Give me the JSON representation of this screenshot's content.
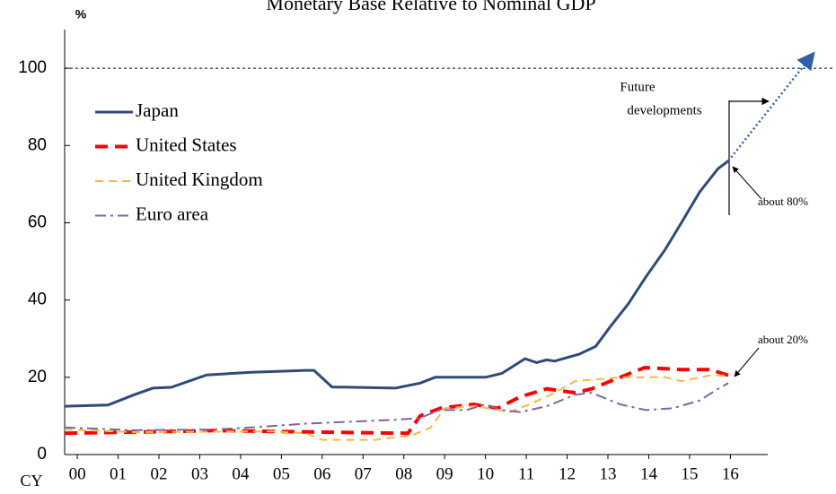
{
  "chart_data": {
    "type": "line",
    "title": "Monetary Base Relative to Nominal GDP",
    "y_label": "%",
    "x_label": "CY",
    "xlim": [
      0.19,
      19
    ],
    "ylim": [
      0,
      110
    ],
    "yticks": [
      0,
      20,
      40,
      60,
      80,
      100
    ],
    "xticks": [
      {
        "value": 0.5,
        "label": "00"
      },
      {
        "value": 1.5,
        "label": "01"
      },
      {
        "value": 2.5,
        "label": "02"
      },
      {
        "value": 3.5,
        "label": "03"
      },
      {
        "value": 4.5,
        "label": "04"
      },
      {
        "value": 5.5,
        "label": "05"
      },
      {
        "value": 6.5,
        "label": "06"
      },
      {
        "value": 7.5,
        "label": "07"
      },
      {
        "value": 8.5,
        "label": "08"
      },
      {
        "value": 9.5,
        "label": "09"
      },
      {
        "value": 10.5,
        "label": "10"
      },
      {
        "value": 11.5,
        "label": "11"
      },
      {
        "value": 12.5,
        "label": "12"
      },
      {
        "value": 13.5,
        "label": "13"
      },
      {
        "value": 14.5,
        "label": "14"
      },
      {
        "value": 15.5,
        "label": "15"
      },
      {
        "value": 16.5,
        "label": "16"
      }
    ],
    "reference_line": 100,
    "series": [
      {
        "name": "Japan",
        "color": "#2f4a7c",
        "dash": "none",
        "width": 3,
        "x": [
          0.19,
          1.25,
          1.9,
          2.35,
          2.8,
          3.67,
          4.76,
          6.1,
          6.3,
          6.74,
          8.3,
          8.9,
          9.27,
          10.5,
          10.9,
          11.47,
          11.75,
          12,
          12.2,
          12.8,
          13.2,
          13.55,
          14,
          14.43,
          14.9,
          15.3,
          15.75,
          16.2,
          16.45
        ],
        "values": [
          12.5,
          12.8,
          15.5,
          17.2,
          17.4,
          20.6,
          21.3,
          21.8,
          21.8,
          17.5,
          17.2,
          18.5,
          20,
          20,
          21,
          24.8,
          23.8,
          24.5,
          24.2,
          26,
          28,
          33,
          39,
          46,
          53,
          60,
          68,
          74,
          76
        ]
      },
      {
        "name": "United States",
        "color": "#ff0000",
        "dash": "14 8",
        "width": 4,
        "x": [
          0.19,
          3.9,
          8.6,
          8.9,
          9.4,
          10.2,
          10.8,
          11.36,
          12,
          12.7,
          13.1,
          13.8,
          14.4,
          15.3,
          16,
          16.45
        ],
        "values": [
          5.5,
          6.2,
          5.5,
          10,
          12,
          13,
          12,
          15,
          17,
          16,
          17,
          20,
          22.5,
          22,
          22,
          20.5
        ]
      },
      {
        "name": "United Kingdom",
        "color": "#f5b942",
        "dash": "9 6",
        "width": 2,
        "x": [
          0.19,
          1.9,
          5.2,
          6.1,
          6.5,
          7.8,
          8.7,
          9.16,
          9.5,
          10.26,
          11.1,
          11.58,
          12.2,
          12.7,
          13.8,
          14.9,
          15.3,
          16,
          16.45
        ],
        "values": [
          6.5,
          5.8,
          6,
          5.5,
          3.8,
          3.8,
          5,
          7,
          12,
          12.5,
          11,
          13,
          16,
          19,
          20,
          20,
          19,
          20.5,
          20.5
        ]
      },
      {
        "name": "Euro area",
        "color": "#8064a2",
        "dash": "12 5 3 5",
        "width": 2,
        "x": [
          0.19,
          1.9,
          3.9,
          4.76,
          6.1,
          7.18,
          8.3,
          8.9,
          9.38,
          10.04,
          10.5,
          10.9,
          11.36,
          12,
          12.7,
          13.1,
          13.8,
          14.43,
          15.09,
          15.75,
          16.2,
          16.45
        ],
        "values": [
          7,
          6.3,
          6.5,
          7,
          8,
          8.5,
          9,
          9.5,
          11.5,
          11.5,
          13,
          11.5,
          11,
          12.5,
          15.5,
          16,
          13,
          11.5,
          12,
          14,
          17,
          18.5
        ]
      }
    ],
    "projection": {
      "x": [
        16.45,
        18.55
      ],
      "values": [
        76,
        104
      ],
      "color": "#2f5fa8"
    },
    "annotations": [
      "Future",
      "developments",
      "about 80%",
      "about 20%"
    ]
  }
}
